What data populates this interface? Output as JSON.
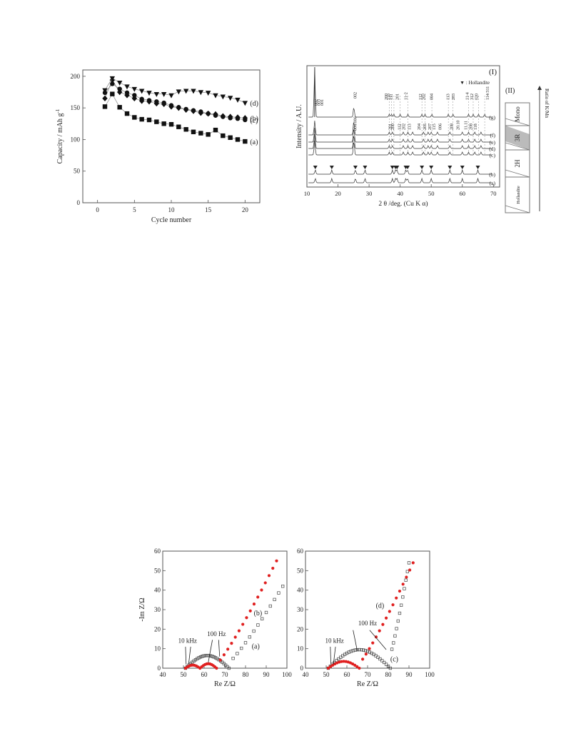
{
  "chart_data": [
    {
      "type": "scatter",
      "xlabel": "Cycle number",
      "ylabel": "Capacity / mAh g",
      "ylabel_sup": "-1",
      "xlim": [
        -2,
        22
      ],
      "ylim": [
        0,
        210
      ],
      "xticks": [
        "0",
        "5",
        "10",
        "15",
        "20"
      ],
      "xtick_values": [
        0,
        5,
        10,
        15,
        20
      ],
      "yticks": [
        "0",
        "50",
        "100",
        "150",
        "200"
      ],
      "ytick_values": [
        0,
        50,
        100,
        150,
        200
      ],
      "series": [
        {
          "name": "(a)",
          "marker": "square",
          "x": [
            1,
            2,
            3,
            4,
            5,
            6,
            7,
            8,
            9,
            10,
            11,
            12,
            13,
            14,
            15,
            16,
            17,
            18,
            19,
            20
          ],
          "values": [
            152,
            172,
            151,
            141,
            135,
            132,
            131,
            128,
            125,
            124,
            120,
            116,
            112,
            110,
            108,
            115,
            106,
            103,
            100,
            97
          ]
        },
        {
          "name": "(b)",
          "marker": "diamond",
          "x": [
            1,
            2,
            3,
            4,
            5,
            6,
            7,
            8,
            9,
            10,
            11,
            12,
            13,
            14,
            15,
            16,
            17,
            18,
            19,
            20
          ],
          "values": [
            165,
            194,
            175,
            170,
            165,
            161,
            160,
            157,
            156,
            152,
            150,
            147,
            145,
            142,
            141,
            140,
            137,
            136,
            135,
            134
          ]
        },
        {
          "name": "(c)",
          "marker": "circle",
          "x": [
            1,
            2,
            3,
            4,
            5,
            6,
            7,
            8,
            9,
            10,
            11,
            12,
            13,
            14,
            15,
            16,
            17,
            18,
            19,
            20
          ],
          "values": [
            174,
            188,
            180,
            174,
            170,
            164,
            162,
            160,
            158,
            154,
            151,
            148,
            146,
            144,
            141,
            138,
            136,
            134,
            133,
            131
          ]
        },
        {
          "name": "(d)",
          "marker": "triangle-down",
          "x": [
            1,
            2,
            3,
            4,
            5,
            6,
            7,
            8,
            9,
            10,
            11,
            12,
            13,
            14,
            15,
            16,
            17,
            18,
            19,
            20
          ],
          "values": [
            178,
            197,
            190,
            184,
            180,
            177,
            174,
            172,
            172,
            170,
            176,
            177,
            177,
            175,
            174,
            170,
            168,
            166,
            163,
            158
          ]
        }
      ]
    },
    {
      "type": "line",
      "panel_label": "(I)",
      "xlabel": "2 θ /deg. (Cu K α)",
      "ylabel": "Intensity / A.U.",
      "xlim": [
        10,
        72
      ],
      "xticks": [
        "10",
        "20",
        "30",
        "40",
        "50",
        "60",
        "70"
      ],
      "xtick_values": [
        10,
        20,
        30,
        40,
        50,
        60,
        70
      ],
      "legend": "▼ : Hollandite",
      "series_labels": [
        "(g)",
        "(f)",
        "(e)",
        "(d)",
        "(c)",
        "(b)",
        "(a)"
      ],
      "annotations": [
        "002",
        "003",
        "001",
        "002",
        "200",
        "110",
        "111",
        "201",
        "11-2",
        "112",
        "202",
        "004",
        "113",
        "203",
        "11-4",
        "312",
        "020",
        "114/311",
        "004/006",
        "201",
        "200",
        "112",
        "202",
        "113",
        "204",
        "205",
        "207",
        "115",
        "006",
        "208",
        "20.10",
        "11.11",
        "208",
        "118"
      ],
      "peaks_g": [
        12.5,
        25.1,
        36.5,
        37.2,
        38.0,
        40.0,
        42.5,
        47.0,
        48.0,
        50.2,
        55.5,
        57.0,
        62.0,
        63.5,
        65.2,
        67.2
      ],
      "peaks_f": [
        12.5,
        25.1,
        36.5,
        37.5,
        41.0,
        42.5,
        44.0,
        47.5,
        49.0,
        50.0,
        52.0,
        56.0,
        60.0,
        62.0,
        64.0,
        66.0
      ],
      "hollandite_peaks": [
        12.7,
        18.0,
        25.6,
        28.7,
        37.5,
        38.5,
        39.0,
        41.8,
        42.4,
        47.0,
        50.0,
        56.0,
        60.0,
        65.0
      ]
    },
    {
      "type": "table",
      "panel_label": "(II)",
      "axis_label": "Ratio of K/Mn",
      "phases": [
        "Mono",
        "3R",
        "2H",
        "Hollandite"
      ]
    },
    {
      "type": "scatter",
      "xlabel": "Re Z/Ω",
      "ylabel": "-Im Z/Ω",
      "xlim": [
        40,
        100
      ],
      "ylim": [
        0,
        60
      ],
      "xticks": [
        "40",
        "50",
        "60",
        "70",
        "80",
        "90",
        "100"
      ],
      "yticks": [
        "0",
        "10",
        "20",
        "30",
        "40",
        "50",
        "60"
      ],
      "labels": [
        "(b)",
        "(a)"
      ],
      "freq_labels": [
        "10 kHz",
        "100 Hz"
      ],
      "series": [
        {
          "name": "(a)",
          "marker": "open-square",
          "color": "#444444"
        },
        {
          "name": "(b)",
          "marker": "filled-circle",
          "color": "#e02020"
        }
      ]
    },
    {
      "type": "scatter",
      "xlabel": "Re Z/Ω",
      "ylabel": "",
      "xlim": [
        40,
        100
      ],
      "ylim": [
        0,
        60
      ],
      "xticks": [
        "40",
        "50",
        "60",
        "70",
        "80",
        "90",
        "100"
      ],
      "yticks": [
        "0",
        "10",
        "20",
        "30",
        "40",
        "50",
        "60"
      ],
      "labels": [
        "(d)",
        "(c)"
      ],
      "freq_labels": [
        "10 kHz",
        "100 Hz"
      ],
      "series": [
        {
          "name": "(c)",
          "marker": "open-square",
          "color": "#444444"
        },
        {
          "name": "(d)",
          "marker": "filled-circle",
          "color": "#e02020"
        }
      ]
    }
  ]
}
